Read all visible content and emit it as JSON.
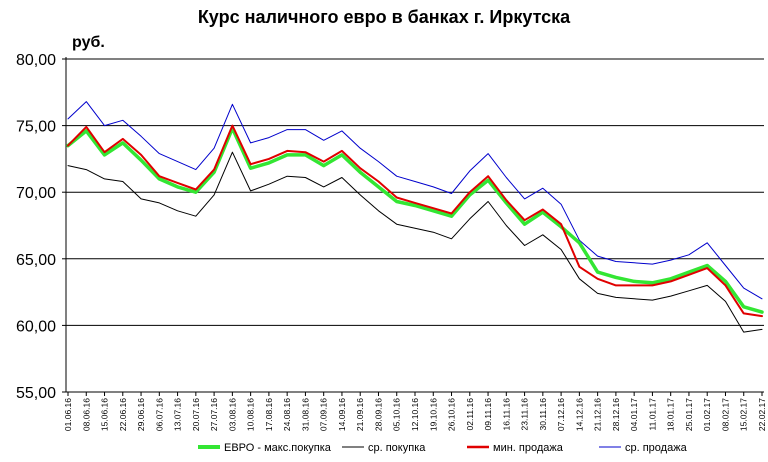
{
  "chart_data": {
    "type": "line",
    "title": "Курс наличного евро в банках г. Иркутска",
    "ylabel": "руб.",
    "xlabel": "",
    "ylim": [
      55,
      80
    ],
    "yticks": [
      "80,00",
      "75,00",
      "70,00",
      "65,00",
      "60,00",
      "55,00"
    ],
    "ytick_values": [
      80,
      75,
      70,
      65,
      60,
      55
    ],
    "grid": "horizontal-major",
    "legend_position": "bottom",
    "x": [
      "01.06.16",
      "08.06.16",
      "15.06.16",
      "22.06.16",
      "29.06.16",
      "06.07.16",
      "13.07.16",
      "20.07.16",
      "27.07.16",
      "03.08.16",
      "10.08.16",
      "17.08.16",
      "24.08.16",
      "31.08.16",
      "07.09.16",
      "14.09.16",
      "21.09.16",
      "28.09.16",
      "05.10.16",
      "12.10.16",
      "19.10.16",
      "26.10.16",
      "02.11.16",
      "09.11.16",
      "16.11.16",
      "23.11.16",
      "30.11.16",
      "07.12.16",
      "14.12.16",
      "21.12.16",
      "28.12.16",
      "04.01.17",
      "11.01.17",
      "18.01.17",
      "25.01.17",
      "01.02.17",
      "08.02.17",
      "15.02.17",
      "22.02.17"
    ],
    "series": [
      {
        "name": "ЕВРО - макс.покупка",
        "color": "#33e633",
        "values": [
          73.5,
          74.6,
          72.8,
          73.7,
          72.4,
          71.0,
          70.4,
          70.0,
          71.5,
          74.8,
          71.8,
          72.2,
          72.8,
          72.8,
          72.0,
          72.8,
          71.5,
          70.4,
          69.3,
          69.0,
          68.6,
          68.2,
          69.8,
          70.9,
          69.2,
          67.6,
          68.5,
          67.4,
          66.2,
          64.0,
          63.6,
          63.3,
          63.2,
          63.5,
          64.0,
          64.5,
          63.3,
          61.4,
          61.0
        ]
      },
      {
        "name": "ср. покупка",
        "color": "#000000",
        "values": [
          72.0,
          71.7,
          71.0,
          70.8,
          69.5,
          69.2,
          68.6,
          68.2,
          69.8,
          73.0,
          70.1,
          70.6,
          71.2,
          71.1,
          70.4,
          71.1,
          69.8,
          68.6,
          67.6,
          67.3,
          67.0,
          66.5,
          68.0,
          69.3,
          67.5,
          66.0,
          66.8,
          65.7,
          63.5,
          62.4,
          62.1,
          62.0,
          61.9,
          62.2,
          62.6,
          63.0,
          61.8,
          59.5,
          59.7
        ]
      },
      {
        "name": "мин. продажа",
        "color": "#e00000",
        "values": [
          73.5,
          74.9,
          73.0,
          74.0,
          72.8,
          71.2,
          70.7,
          70.2,
          71.7,
          75.0,
          72.1,
          72.5,
          73.1,
          73.0,
          72.3,
          73.1,
          71.8,
          70.8,
          69.6,
          69.2,
          68.8,
          68.4,
          70.0,
          71.2,
          69.4,
          67.9,
          68.7,
          67.6,
          64.4,
          63.5,
          63.0,
          63.0,
          63.0,
          63.3,
          63.8,
          64.3,
          63.0,
          60.9,
          60.7
        ]
      },
      {
        "name": "ср. продажа",
        "color": "#0000cc",
        "values": [
          75.5,
          76.8,
          75.0,
          75.4,
          74.2,
          72.9,
          72.3,
          71.7,
          73.3,
          76.6,
          73.7,
          74.1,
          74.7,
          74.7,
          73.9,
          74.6,
          73.3,
          72.3,
          71.2,
          70.8,
          70.4,
          69.9,
          71.6,
          72.9,
          71.1,
          69.5,
          70.3,
          69.1,
          66.4,
          65.2,
          64.8,
          64.7,
          64.6,
          64.9,
          65.3,
          66.2,
          64.5,
          62.8,
          62.0
        ]
      }
    ]
  }
}
